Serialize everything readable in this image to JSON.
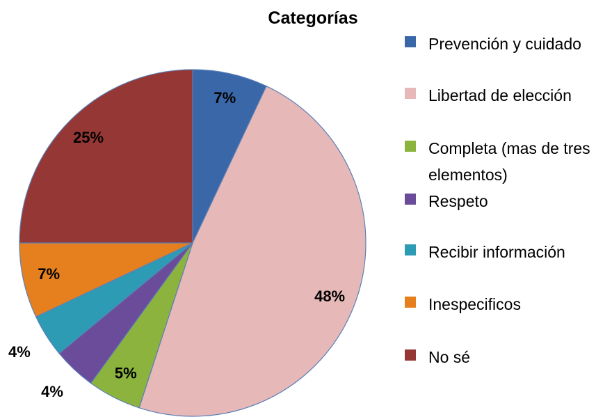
{
  "chart_data": {
    "type": "pie",
    "title": "Categorías",
    "categories": [
      "Prevención y cuidado",
      "Libertad de elección",
      "Completa (mas de tres elementos)",
      "Respeto",
      "Recibir información",
      "Inespecificos",
      "No sé"
    ],
    "values": [
      7,
      48,
      5,
      4,
      4,
      7,
      25
    ],
    "value_labels": [
      "7%",
      "48%",
      "5%",
      "4%",
      "4%",
      "7%",
      "25%"
    ],
    "colors": [
      "#3a67a8",
      "#e6b9b8",
      "#8db33f",
      "#6b4c9a",
      "#2e9bb5",
      "#e6801f",
      "#953735"
    ],
    "legend": "right"
  }
}
